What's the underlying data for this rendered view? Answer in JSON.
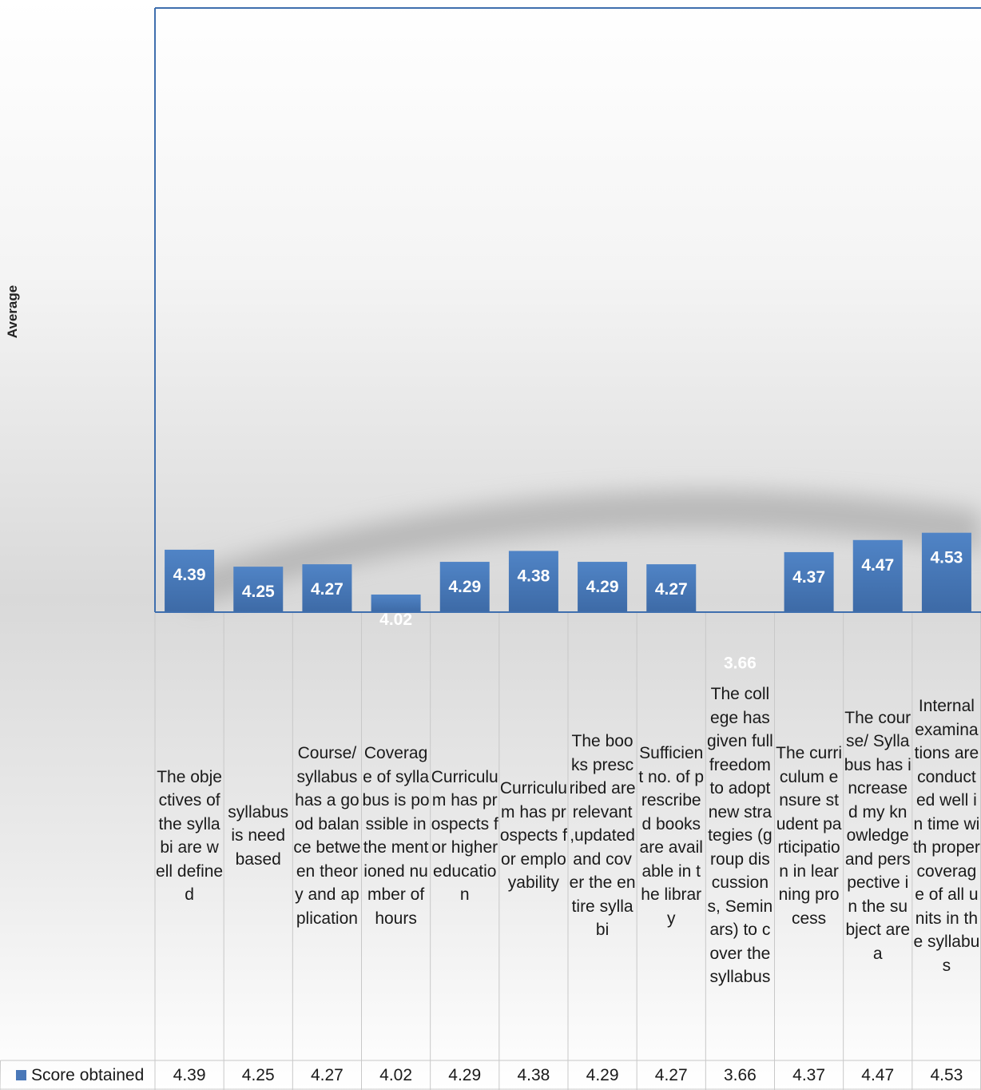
{
  "chart_data": {
    "type": "bar",
    "title": "",
    "xlabel": "",
    "ylabel": "Average",
    "ylim": [
      0,
      5
    ],
    "grid": false,
    "legend_position": "bottom-left",
    "bar_color": "#4a7fc1",
    "categories": [
      "The objectives of the syllabi are well defined",
      "syllabus is need based",
      "Course/ syllabus has a good balance between theory and application",
      "Coverage of syllabus is possible in the mentioned number of hours",
      "Curriculum has prospects for higher education",
      "Curriculum has prospects for employability",
      "The books prescribed are relevant ,updated and cover the entire syllabi",
      "Sufficient no. of prescribed books are available in the library",
      "The college has given full freedom to adopt new strategies (group discussions, Seminars) to cover the syllabus",
      "The curriculum ensure student participation in learning process",
      "The course/ Syllabus has increased my knowledge and perspective in the subject area",
      "Internal examinations are conducted well in time with proper coverage of all units in the syllabus"
    ],
    "series": [
      {
        "name": "Score obtained",
        "values": [
          4.39,
          4.25,
          4.27,
          4.02,
          4.29,
          4.38,
          4.29,
          4.27,
          3.66,
          4.37,
          4.47,
          4.53
        ],
        "labels": [
          "4.39",
          "4.25",
          "4.27",
          "4.02",
          "4.29",
          "4.38",
          "4.29",
          "4.27",
          "3.66",
          "4.37",
          "4.47",
          "4.53"
        ]
      }
    ]
  }
}
